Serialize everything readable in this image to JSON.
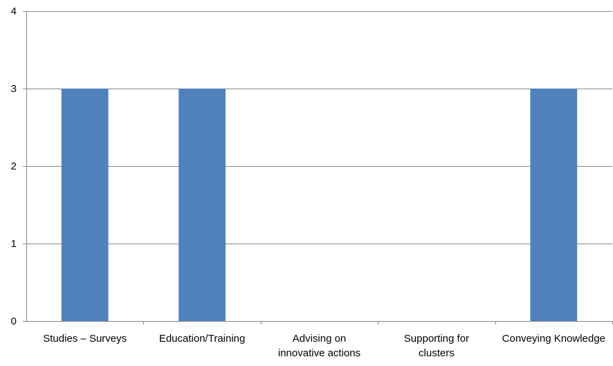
{
  "chart_data": {
    "type": "bar",
    "categories": [
      [
        "Studies – Surveys"
      ],
      [
        "Education/Training"
      ],
      [
        "Advising on",
        "innovative actions"
      ],
      [
        "Supporting for",
        "clusters"
      ],
      [
        "Conveying Knowledge"
      ]
    ],
    "values": [
      3,
      3,
      0,
      0,
      3
    ],
    "ylim": [
      0,
      4
    ],
    "yticks": [
      "0",
      "1",
      "2",
      "3",
      "4"
    ],
    "grid": true,
    "legend": "none",
    "bar_color": "#4f81bd",
    "grid_color": "#868686",
    "axis_color": "#868686"
  }
}
